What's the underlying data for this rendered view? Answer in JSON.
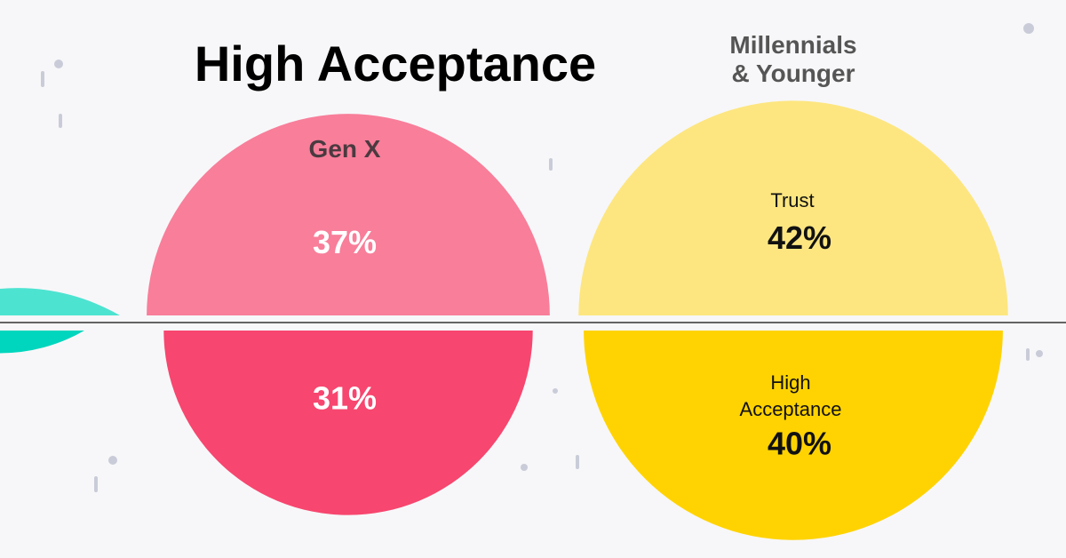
{
  "chart_data": {
    "type": "semicircle",
    "title": "High Acceptance",
    "categories": [
      "Gen X",
      "Millennials\n& Younger"
    ],
    "series": [
      {
        "name": "Trust",
        "colors": [
          "#f87e9a",
          "#fde680"
        ],
        "values": [
          37,
          42
        ],
        "value_labels": [
          "37%",
          "42%"
        ]
      },
      {
        "name": "High Acceptance",
        "colors": [
          "#f7466f",
          "#ffd302"
        ],
        "values": [
          31,
          40
        ],
        "value_labels": [
          "31%",
          "40%"
        ]
      }
    ]
  }
}
